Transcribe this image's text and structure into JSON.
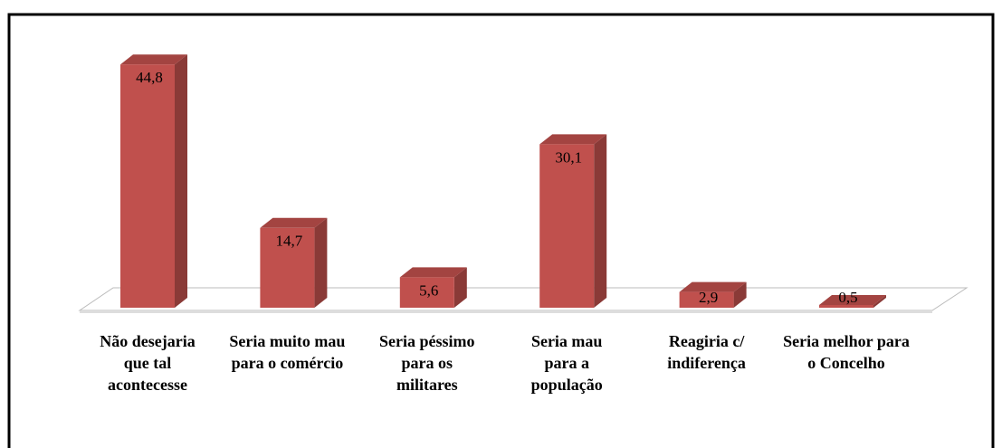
{
  "chart_data": {
    "type": "bar3d",
    "categories": [
      "Não desejaria que tal acontecesse",
      "Seria muito mau para o comércio",
      "Seria péssimo para os militares",
      "Seria mau para a população",
      "Reagiria c/ indiferença",
      "Seria melhor para o Concelho"
    ],
    "values": [
      44.8,
      14.7,
      5.6,
      30.1,
      2.9,
      0.5
    ],
    "value_labels": [
      "44,8",
      "14,7",
      "5,6",
      "30,1",
      "2,9",
      "0,5"
    ],
    "color": "#c0504d"
  }
}
